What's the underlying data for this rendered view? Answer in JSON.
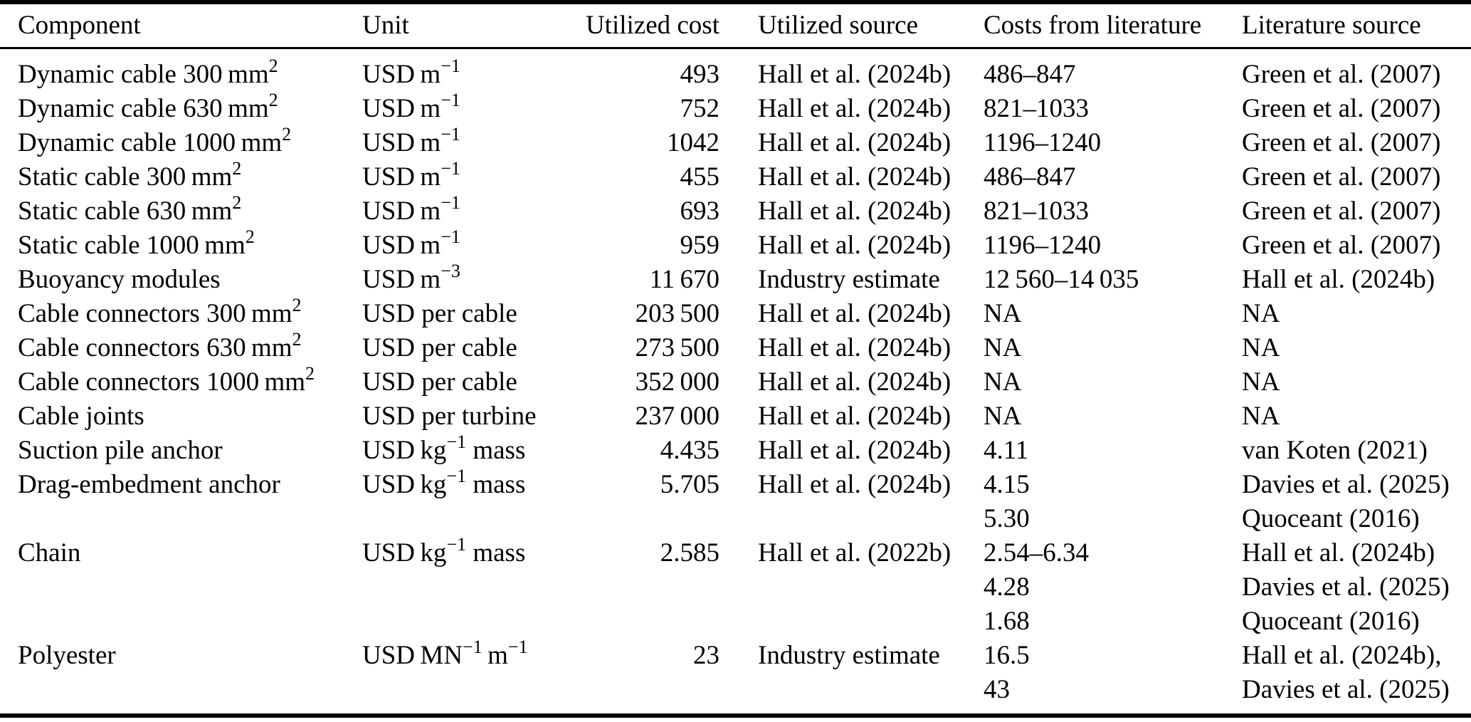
{
  "page": {
    "background": "#ffffff",
    "text_color": "#000000",
    "rule_color": "#000000"
  },
  "table": {
    "columns": [
      "Component",
      "Unit",
      "Utilized cost",
      "Utilized source",
      "Costs from literature",
      "Literature source"
    ],
    "rows": [
      [
        "Dynamic cable 300 mm^{2}",
        "USD m^{−1}",
        "493",
        "Hall et al. (2024b)",
        "486–847",
        "Green et al. (2007)"
      ],
      [
        "Dynamic cable 630 mm^{2}",
        "USD m^{−1}",
        "752",
        "Hall et al. (2024b)",
        "821–1033",
        "Green et al. (2007)"
      ],
      [
        "Dynamic cable 1000 mm^{2}",
        "USD m^{−1}",
        "1042",
        "Hall et al. (2024b)",
        "1196–1240",
        "Green et al. (2007)"
      ],
      [
        "Static cable 300 mm^{2}",
        "USD m^{−1}",
        "455",
        "Hall et al. (2024b)",
        "486–847",
        "Green et al. (2007)"
      ],
      [
        "Static cable 630 mm^{2}",
        "USD m^{−1}",
        "693",
        "Hall et al. (2024b)",
        "821–1033",
        "Green et al. (2007)"
      ],
      [
        "Static cable 1000 mm^{2}",
        "USD m^{−1}",
        "959",
        "Hall et al. (2024b)",
        "1196–1240",
        "Green et al. (2007)"
      ],
      [
        "Buoyancy modules",
        "USD m^{−3}",
        "11 670",
        "Industry estimate",
        "12 560–14 035",
        "Hall et al. (2024b)"
      ],
      [
        "Cable connectors 300 mm^{2}",
        "USD per cable",
        "203 500",
        "Hall et al. (2024b)",
        "NA",
        "NA"
      ],
      [
        "Cable connectors 630 mm^{2}",
        "USD per cable",
        "273 500",
        "Hall et al. (2024b)",
        "NA",
        "NA"
      ],
      [
        "Cable connectors 1000 mm^{2}",
        "USD per cable",
        "352 000",
        "Hall et al. (2024b)",
        "NA",
        "NA"
      ],
      [
        "Cable joints",
        "USD per turbine",
        "237 000",
        "Hall et al. (2024b)",
        "NA",
        "NA"
      ],
      [
        "Suction pile anchor",
        "USD kg^{−1} mass",
        "4.435",
        "Hall et al. (2024b)",
        "4.11",
        "van Koten (2021)"
      ],
      [
        "Drag-embedment anchor",
        "USD kg^{−1} mass",
        "5.705",
        "Hall et al. (2024b)",
        "4.15",
        "Davies et al. (2025)"
      ],
      [
        "",
        "",
        "",
        "",
        "5.30",
        "Quoceant (2016)"
      ],
      [
        "Chain",
        "USD kg^{−1} mass",
        "2.585",
        "Hall et al. (2022b)",
        "2.54–6.34",
        "Hall et al. (2024b)"
      ],
      [
        "",
        "",
        "",
        "",
        "4.28",
        "Davies et al. (2025)"
      ],
      [
        "",
        "",
        "",
        "",
        "1.68",
        "Quoceant (2016)"
      ],
      [
        "Polyester",
        "USD MN^{−1} m^{−1}",
        "23",
        "Industry estimate",
        "16.5",
        "Hall et al. (2024b),"
      ],
      [
        "",
        "",
        "",
        "",
        "43",
        "Davies et al. (2025)"
      ]
    ]
  }
}
